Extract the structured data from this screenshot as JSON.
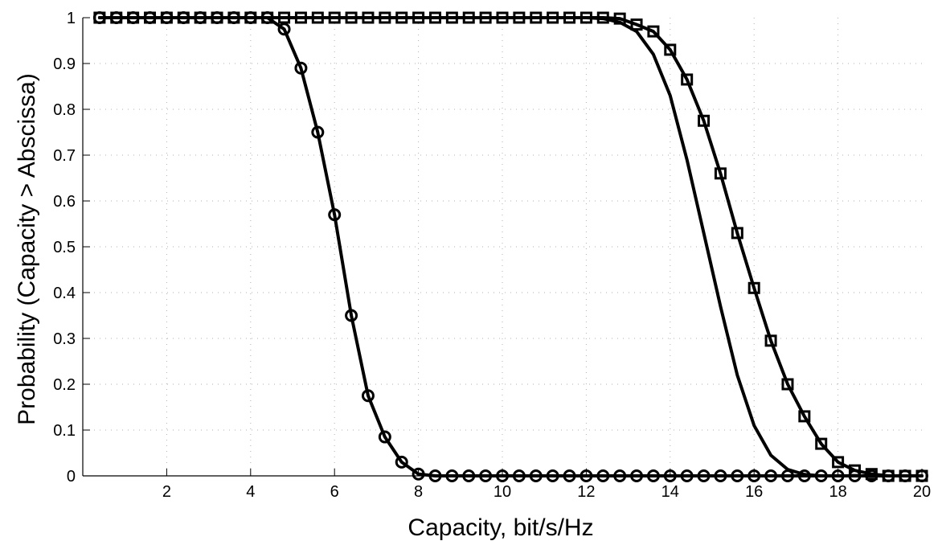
{
  "chart_data": {
    "type": "line",
    "title": "",
    "xlabel": "Capacity, bit/s/Hz",
    "ylabel": "Probability (Capacity > Abscissa)",
    "xlim": [
      0,
      20
    ],
    "ylim": [
      0,
      1
    ],
    "xticks": [
      2,
      4,
      6,
      8,
      10,
      12,
      14,
      16,
      18,
      20
    ],
    "yticks": [
      0,
      0.1,
      0.2,
      0.3,
      0.4,
      0.5,
      0.6,
      0.7,
      0.8,
      0.9,
      1
    ],
    "xtick_labels": [
      "2",
      "4",
      "6",
      "8",
      "10",
      "12",
      "14",
      "16",
      "18",
      "20"
    ],
    "ytick_labels": [
      "0",
      "0.1",
      "0.2",
      "0.3",
      "0.4",
      "0.5",
      "0.6",
      "0.7",
      "0.8",
      "0.9",
      "1"
    ],
    "grid": true,
    "line_color": "#000000",
    "grid_color": "#b0b0b0",
    "series": [
      {
        "marker": "circle",
        "line": true,
        "x": [
          0.4,
          0.8,
          1.2,
          1.6,
          2.0,
          2.4,
          2.8,
          3.2,
          3.6,
          4.0,
          4.4,
          4.8,
          5.2,
          5.6,
          6.0,
          6.4,
          6.8,
          7.2,
          7.6,
          8.0,
          8.4,
          8.8,
          9.2,
          9.6,
          10.0,
          10.4,
          10.8,
          11.2,
          11.6,
          12.0,
          12.4,
          12.8,
          13.2,
          13.6,
          14.0,
          14.4,
          14.8,
          15.2,
          15.6,
          16.0,
          16.4,
          16.8,
          17.2,
          17.6,
          18.0,
          18.4,
          18.8,
          19.2,
          19.6,
          20.0
        ],
        "y": [
          1,
          1,
          1,
          1,
          1,
          1,
          1,
          1,
          1,
          1,
          1,
          0.975,
          0.89,
          0.75,
          0.57,
          0.35,
          0.175,
          0.085,
          0.03,
          0.004,
          0,
          0,
          0,
          0,
          0,
          0,
          0,
          0,
          0,
          0,
          0,
          0,
          0,
          0,
          0,
          0,
          0,
          0,
          0,
          0,
          0,
          0,
          0,
          0,
          0,
          0,
          0,
          0,
          0,
          0
        ]
      },
      {
        "marker": "none",
        "line": true,
        "x": [
          0.4,
          12.0,
          12.4,
          12.8,
          13.2,
          13.6,
          14.0,
          14.4,
          14.8,
          15.2,
          15.6,
          16.0,
          16.4,
          16.8,
          17.2,
          17.6,
          18.0
        ],
        "y": [
          1,
          1,
          0.998,
          0.99,
          0.97,
          0.92,
          0.83,
          0.69,
          0.53,
          0.37,
          0.22,
          0.11,
          0.045,
          0.014,
          0.003,
          0.0,
          0.0
        ]
      },
      {
        "marker": "square",
        "line": true,
        "x": [
          0.4,
          0.8,
          1.2,
          1.6,
          2.0,
          2.4,
          2.8,
          3.2,
          3.6,
          4.0,
          4.4,
          4.8,
          5.2,
          5.6,
          6.0,
          6.4,
          6.8,
          7.2,
          7.6,
          8.0,
          8.4,
          8.8,
          9.2,
          9.6,
          10.0,
          10.4,
          10.8,
          11.2,
          11.6,
          12.0,
          12.4,
          12.8,
          13.2,
          13.6,
          14.0,
          14.4,
          14.8,
          15.2,
          15.6,
          16.0,
          16.4,
          16.8,
          17.2,
          17.6,
          18.0,
          18.4,
          18.8,
          19.2,
          19.6,
          20.0
        ],
        "y": [
          1,
          1,
          1,
          1,
          1,
          1,
          1,
          1,
          1,
          1,
          1,
          1,
          1,
          1,
          1,
          1,
          1,
          1,
          1,
          1,
          1,
          1,
          1,
          1,
          1,
          1,
          1,
          1,
          1,
          1,
          1,
          0.998,
          0.985,
          0.97,
          0.93,
          0.865,
          0.775,
          0.66,
          0.53,
          0.41,
          0.295,
          0.2,
          0.13,
          0.07,
          0.03,
          0.012,
          0.004,
          0.0,
          0.0,
          0.0
        ]
      }
    ]
  }
}
